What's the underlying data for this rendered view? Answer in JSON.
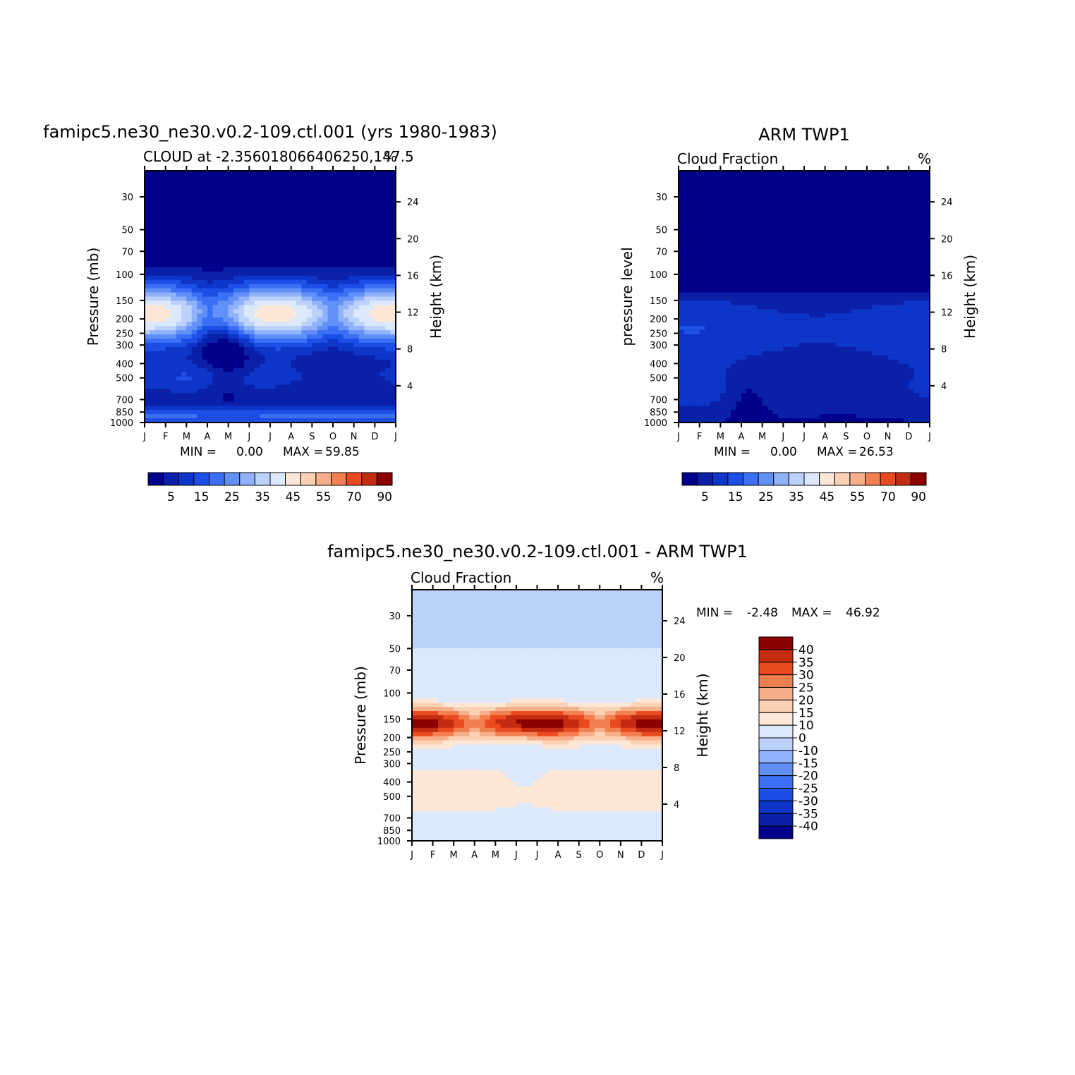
{
  "chart_data": [
    {
      "type": "heatmap",
      "title": "famipc5.ne30_ne30.v0.2-109.ctl.001 (yrs 1980-1983)",
      "subtitle": "CLOUD at -2.356018066406250,147.5",
      "units": "%",
      "x_ticks": [
        "J",
        "F",
        "M",
        "A",
        "M",
        "J",
        "J",
        "A",
        "S",
        "O",
        "N",
        "D",
        "J"
      ],
      "y_ticks": [
        "30",
        "50",
        "70",
        "100",
        "150",
        "200",
        "250",
        "300",
        "400",
        "500",
        "700",
        "850",
        "1000"
      ],
      "y_tick_values": [
        30,
        50,
        70,
        100,
        150,
        200,
        250,
        300,
        400,
        500,
        700,
        850,
        1000
      ],
      "ylabel": "Pressure (mb)",
      "ylim": [
        1000,
        20
      ],
      "y2label": "Height (km)",
      "y2_ticks": [
        "4",
        "8",
        "12",
        "16",
        "20",
        "24"
      ],
      "y2_tick_values": [
        4,
        8,
        12,
        16,
        20,
        24
      ],
      "stats": {
        "min_label": "MIN =",
        "min": "0.00",
        "max_label": "MAX =",
        "max": "59.85"
      },
      "colorbar_labels": [
        "5",
        "15",
        "25",
        "35",
        "45",
        "55",
        "70",
        "90"
      ],
      "colorbar_levels": [
        5,
        10,
        15,
        20,
        25,
        30,
        35,
        40,
        45,
        50,
        55,
        60,
        70,
        80,
        90
      ],
      "colormap": "seq",
      "pattern": "model",
      "z_range": [
        0,
        59.85
      ]
    },
    {
      "type": "heatmap",
      "title": "ARM TWP1",
      "subtitle": "Cloud Fraction",
      "units": "%",
      "x_ticks": [
        "J",
        "F",
        "M",
        "A",
        "M",
        "J",
        "J",
        "A",
        "S",
        "O",
        "N",
        "D",
        "J"
      ],
      "y_ticks": [
        "30",
        "50",
        "70",
        "100",
        "150",
        "200",
        "250",
        "300",
        "400",
        "500",
        "700",
        "850",
        "1000"
      ],
      "y_tick_values": [
        30,
        50,
        70,
        100,
        150,
        200,
        250,
        300,
        400,
        500,
        700,
        850,
        1000
      ],
      "ylabel": "pressure level",
      "ylim": [
        1000,
        20
      ],
      "y2label": "Height (km)",
      "y2_ticks": [
        "4",
        "8",
        "12",
        "16",
        "20",
        "24"
      ],
      "y2_tick_values": [
        4,
        8,
        12,
        16,
        20,
        24
      ],
      "stats": {
        "min_label": "MIN =",
        "min": "0.00",
        "max_label": "MAX =",
        "max": "26.53"
      },
      "colorbar_labels": [
        "5",
        "15",
        "25",
        "35",
        "45",
        "55",
        "70",
        "90"
      ],
      "colorbar_levels": [
        5,
        10,
        15,
        20,
        25,
        30,
        35,
        40,
        45,
        50,
        55,
        60,
        70,
        80,
        90
      ],
      "colormap": "seq",
      "pattern": "obs",
      "z_range": [
        0,
        26.53
      ]
    },
    {
      "type": "heatmap",
      "title": "famipc5.ne30_ne30.v0.2-109.ctl.001 - ARM TWP1",
      "subtitle": "Cloud Fraction",
      "units": "%",
      "x_ticks": [
        "J",
        "F",
        "M",
        "A",
        "M",
        "J",
        "J",
        "A",
        "S",
        "O",
        "N",
        "D",
        "J"
      ],
      "y_ticks": [
        "30",
        "50",
        "70",
        "100",
        "150",
        "200",
        "250",
        "300",
        "400",
        "500",
        "700",
        "850",
        "1000"
      ],
      "y_tick_values": [
        30,
        50,
        70,
        100,
        150,
        200,
        250,
        300,
        400,
        500,
        700,
        850,
        1000
      ],
      "ylabel": "Pressure (mb)",
      "ylim": [
        1000,
        20
      ],
      "y2label": "Height (km)",
      "y2_ticks": [
        "4",
        "8",
        "12",
        "16",
        "20",
        "24"
      ],
      "y2_tick_values": [
        4,
        8,
        12,
        16,
        20,
        24
      ],
      "stats": {
        "min_label": "MIN =",
        "min": "-2.48",
        "max_label": "MAX =",
        "max": "46.92"
      },
      "colorbar_labels": [
        "40",
        "35",
        "30",
        "25",
        "20",
        "15",
        "10",
        "0",
        "-10",
        "-15",
        "-20",
        "-25",
        "-30",
        "-35",
        "-40"
      ],
      "colorbar_levels": [
        -40,
        -35,
        -30,
        -25,
        -20,
        -15,
        -10,
        0,
        10,
        15,
        20,
        25,
        30,
        35,
        40
      ],
      "colormap": "div",
      "pattern": "diff",
      "z_range": [
        -2.48,
        46.92
      ]
    }
  ],
  "colors": {
    "seq": [
      "#00008b",
      "#0a20a8",
      "#0d35c8",
      "#1d4ee6",
      "#3b6ff5",
      "#6191f7",
      "#90b2fa",
      "#bcd2fb",
      "#dce9fd",
      "#fde8d8",
      "#fbd1b4",
      "#f7ae8b",
      "#f27f4f",
      "#ea4a1f",
      "#c42c12",
      "#8b0000"
    ],
    "div": [
      "#00008b",
      "#0a20a8",
      "#0d35c8",
      "#1d4ee6",
      "#3b6ff5",
      "#6191f7",
      "#90b2fa",
      "#bcd2fb",
      "#dce9fd",
      "#fde8d8",
      "#fbd1b4",
      "#f7ae8b",
      "#f27f4f",
      "#ea4a1f",
      "#c42c12",
      "#8b0000"
    ]
  }
}
